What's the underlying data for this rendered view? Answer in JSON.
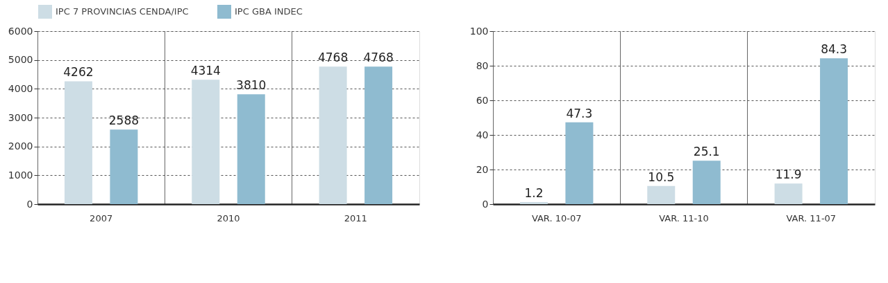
{
  "chart_data": [
    {
      "type": "bar",
      "categories": [
        "2007",
        "2010",
        "2011"
      ],
      "series": [
        {
          "name": "IPC 7 PROVINCIAS CENDA/IPC",
          "color": "#cddde5",
          "values": [
            4262,
            4314,
            4768
          ]
        },
        {
          "name": "IPC GBA INDEC",
          "color": "#8fbbd0",
          "values": [
            2588,
            3810,
            4768
          ]
        }
      ],
      "ylim": [
        0,
        6000
      ],
      "yticks": [
        0,
        1000,
        2000,
        3000,
        4000,
        5000,
        6000
      ],
      "data_labels": true,
      "grid": true,
      "legend": "top left"
    },
    {
      "type": "bar",
      "categories": [
        "VAR. 10-07",
        "VAR. 11-10",
        "VAR. 11-07"
      ],
      "series": [
        {
          "color": "#cddde5",
          "values": [
            1.2,
            10.5,
            11.9
          ]
        },
        {
          "color": "#8fbbd0",
          "values": [
            47.3,
            25.1,
            84.3
          ]
        }
      ],
      "ylim": [
        0,
        100
      ],
      "yticks": [
        0,
        20,
        40,
        60,
        80,
        100
      ],
      "data_labels": true,
      "grid": true
    }
  ]
}
